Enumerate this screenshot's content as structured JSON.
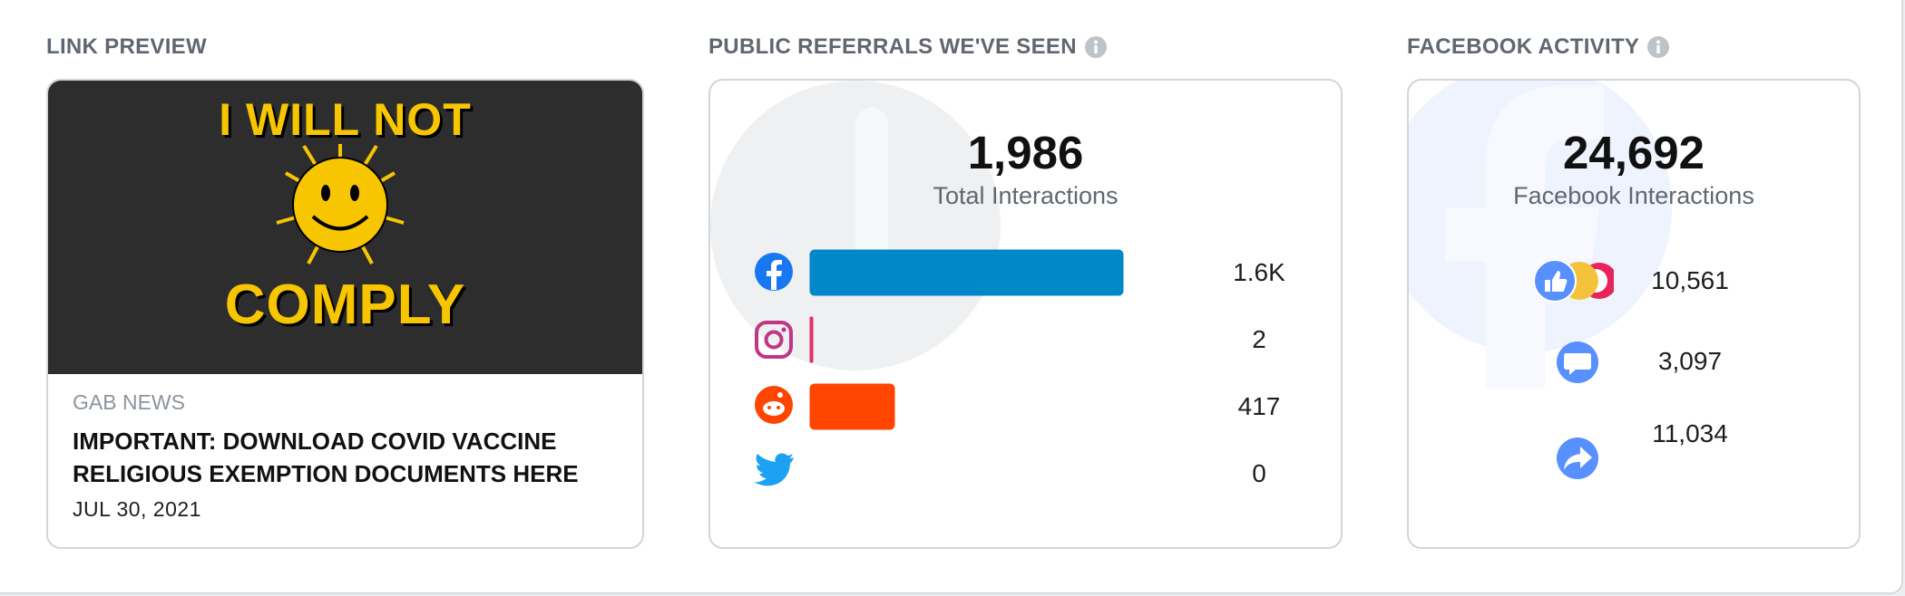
{
  "link_preview": {
    "heading": "LINK PREVIEW",
    "image_text": [
      "I WILL NOT",
      "COMPLY"
    ],
    "source": "GAB NEWS",
    "headline": "IMPORTANT: DOWNLOAD COVID VACCINE RELIGIOUS EXEMPTION DOCUMENTS HERE",
    "date": "JUL 30, 2021"
  },
  "referrals": {
    "heading": "PUBLIC REFERRALS WE'VE SEEN",
    "total": "1,986",
    "total_label": "Total Interactions",
    "rows": [
      {
        "value": 1567,
        "value_label": "1.6K",
        "color": "#0088c9"
      },
      {
        "value": 2,
        "value_label": "2",
        "color": "#e1306c"
      },
      {
        "value": 417,
        "value_label": "417",
        "color": "#ff4500"
      },
      {
        "value": 0,
        "value_label": "0",
        "color": "#1da1f2"
      }
    ]
  },
  "facebook_activity": {
    "heading": "FACEBOOK ACTIVITY",
    "total": "24,692",
    "total_label": "Facebook Interactions",
    "rows": [
      "10,561",
      "3,097",
      "11,034"
    ]
  }
}
